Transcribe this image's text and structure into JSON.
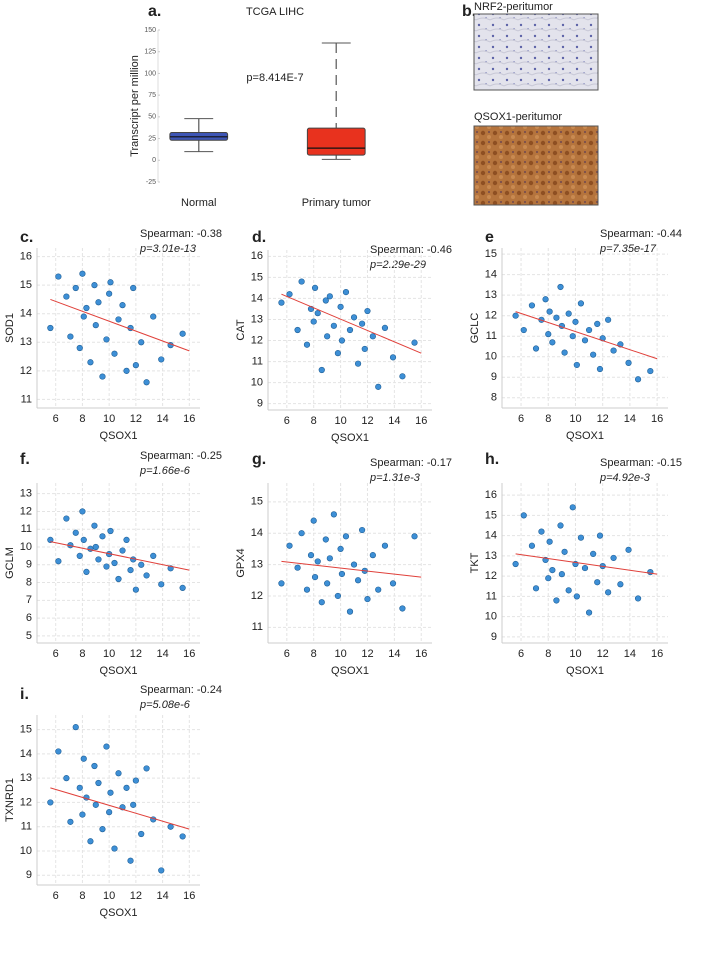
{
  "chart_data": [
    {
      "type": "box",
      "panel_label": "a.",
      "title": "TCGA LIHC",
      "ylabel": "Transcript per million",
      "annotation": "p=8.414E-7",
      "categories": [
        "Normal",
        "Primary tumor"
      ],
      "boxes": [
        {
          "low": 10,
          "q1": 23,
          "median": 27,
          "q3": 32,
          "high": 48,
          "color": "#3d55b5"
        },
        {
          "low": 1,
          "q1": 6,
          "median": 14,
          "q3": 37,
          "high": 135,
          "color": "#e8321e"
        }
      ],
      "ylim": [
        -25,
        150
      ],
      "yticks": [
        -25,
        0,
        25,
        50,
        75,
        100,
        125,
        150
      ]
    },
    {
      "type": "scatter",
      "panel_label": "c.",
      "xlabel": "QSOX1",
      "ylabel": "SOD1",
      "spearman": "Spearman: -0.38",
      "p_label": "p=3.01e-13",
      "x": [
        5.6,
        6.2,
        6.8,
        7.1,
        7.5,
        7.8,
        8.0,
        8.1,
        8.3,
        8.6,
        8.9,
        9.0,
        9.2,
        9.5,
        9.8,
        10.0,
        10.1,
        10.4,
        10.7,
        11.0,
        11.3,
        11.6,
        11.8,
        12.0,
        12.4,
        12.8,
        13.3,
        13.9,
        14.6,
        15.5
      ],
      "values": [
        13.5,
        15.3,
        14.6,
        13.2,
        14.9,
        12.8,
        15.4,
        13.9,
        14.2,
        12.3,
        15.0,
        13.6,
        14.4,
        11.8,
        13.1,
        14.7,
        15.1,
        12.6,
        13.8,
        14.3,
        12.0,
        13.5,
        14.9,
        12.2,
        13.0,
        11.6,
        13.9,
        12.4,
        12.9,
        13.3
      ],
      "fit": {
        "x": [
          5.6,
          16
        ],
        "y": [
          14.5,
          12.7
        ]
      },
      "color": "#3d8fd6",
      "line_color": "#e0403a",
      "xlim": [
        4.6,
        16.8
      ],
      "xticks": [
        6,
        8,
        10,
        12,
        14,
        16
      ],
      "ylim": [
        10.7,
        16.3
      ],
      "yticks": [
        11,
        12,
        13,
        14,
        15,
        16
      ],
      "grid": true
    },
    {
      "type": "scatter",
      "panel_label": "d.",
      "xlabel": "QSOX1",
      "ylabel": "CAT",
      "spearman": "Spearman: -0.46",
      "p_label": "p=2.29e-29",
      "x": [
        5.6,
        6.2,
        6.8,
        7.1,
        7.5,
        7.8,
        8.0,
        8.1,
        8.3,
        8.6,
        8.9,
        9.0,
        9.2,
        9.5,
        9.8,
        10.0,
        10.1,
        10.4,
        10.7,
        11.0,
        11.3,
        11.6,
        11.8,
        12.0,
        12.4,
        12.8,
        13.3,
        13.9,
        14.6,
        15.5
      ],
      "values": [
        13.8,
        14.2,
        12.5,
        14.8,
        11.8,
        13.5,
        12.9,
        14.5,
        13.3,
        10.6,
        13.9,
        12.2,
        14.1,
        12.7,
        11.4,
        13.6,
        12.0,
        14.3,
        12.5,
        13.1,
        10.9,
        12.8,
        11.6,
        13.4,
        12.2,
        9.8,
        12.6,
        11.2,
        10.3,
        11.9
      ],
      "fit": {
        "x": [
          5.6,
          16
        ],
        "y": [
          14.2,
          11.4
        ]
      },
      "color": "#3d8fd6",
      "line_color": "#e0403a",
      "xlim": [
        4.6,
        16.8
      ],
      "xticks": [
        6,
        8,
        10,
        12,
        14,
        16
      ],
      "ylim": [
        8.7,
        16.3
      ],
      "yticks": [
        9,
        10,
        11,
        12,
        13,
        14,
        15,
        16
      ],
      "grid": true
    },
    {
      "type": "scatter",
      "panel_label": "e",
      "xlabel": "QSOX1",
      "ylabel": "GCLC",
      "spearman": "Spearman: -0.44",
      "p_label": "p=7.35e-17",
      "x": [
        5.6,
        6.2,
        6.8,
        7.1,
        7.5,
        7.8,
        8.0,
        8.1,
        8.3,
        8.6,
        8.9,
        9.0,
        9.2,
        9.5,
        9.8,
        10.0,
        10.1,
        10.4,
        10.7,
        11.0,
        11.3,
        11.6,
        11.8,
        12.0,
        12.4,
        12.8,
        13.3,
        13.9,
        14.6,
        15.5
      ],
      "values": [
        12.0,
        11.3,
        12.5,
        10.4,
        11.8,
        12.8,
        11.1,
        12.2,
        10.7,
        11.9,
        13.4,
        11.5,
        10.2,
        12.1,
        11.0,
        11.7,
        9.6,
        12.6,
        10.8,
        11.3,
        10.1,
        11.6,
        9.4,
        10.9,
        11.8,
        10.3,
        10.6,
        9.7,
        8.9,
        9.3
      ],
      "fit": {
        "x": [
          5.6,
          16
        ],
        "y": [
          12.2,
          9.9
        ]
      },
      "color": "#3d8fd6",
      "line_color": "#e0403a",
      "xlim": [
        4.6,
        16.8
      ],
      "xticks": [
        6,
        8,
        10,
        12,
        14,
        16
      ],
      "ylim": [
        7.5,
        15.3
      ],
      "yticks": [
        8,
        9,
        10,
        11,
        12,
        13,
        14,
        15
      ],
      "grid": true
    },
    {
      "type": "scatter",
      "panel_label": "f.",
      "xlabel": "QSOX1",
      "ylabel": "GCLM",
      "spearman": "Spearman: -0.25",
      "p_label": "p=1.66e-6",
      "x": [
        5.6,
        6.2,
        6.8,
        7.1,
        7.5,
        7.8,
        8.0,
        8.1,
        8.3,
        8.6,
        8.9,
        9.0,
        9.2,
        9.5,
        9.8,
        10.0,
        10.1,
        10.4,
        10.7,
        11.0,
        11.3,
        11.6,
        11.8,
        12.0,
        12.4,
        12.8,
        13.3,
        13.9,
        14.6,
        15.5
      ],
      "values": [
        10.4,
        9.2,
        11.6,
        10.1,
        10.8,
        9.5,
        12.0,
        10.4,
        8.6,
        9.9,
        11.2,
        10.0,
        9.3,
        10.6,
        8.9,
        9.6,
        10.9,
        9.1,
        8.2,
        9.8,
        10.4,
        8.7,
        9.3,
        7.6,
        9.0,
        8.4,
        9.5,
        7.9,
        8.8,
        7.7
      ],
      "fit": {
        "x": [
          5.6,
          16
        ],
        "y": [
          10.3,
          8.7
        ]
      },
      "color": "#3d8fd6",
      "line_color": "#e0403a",
      "xlim": [
        4.6,
        16.8
      ],
      "xticks": [
        6,
        8,
        10,
        12,
        14,
        16
      ],
      "ylim": [
        4.6,
        13.6
      ],
      "yticks": [
        5,
        6,
        7,
        8,
        9,
        10,
        11,
        12,
        13
      ],
      "grid": true
    },
    {
      "type": "scatter",
      "panel_label": "g.",
      "xlabel": "QSOX1",
      "ylabel": "GPX4",
      "spearman": "Spearman: -0.17",
      "p_label": "p=1.31e-3",
      "x": [
        5.6,
        6.2,
        6.8,
        7.1,
        7.5,
        7.8,
        8.0,
        8.1,
        8.3,
        8.6,
        8.9,
        9.0,
        9.2,
        9.5,
        9.8,
        10.0,
        10.1,
        10.4,
        10.7,
        11.0,
        11.3,
        11.6,
        11.8,
        12.0,
        12.4,
        12.8,
        13.3,
        13.9,
        14.6,
        15.5
      ],
      "values": [
        12.4,
        13.6,
        12.9,
        14.0,
        12.2,
        13.3,
        14.4,
        12.6,
        13.1,
        11.8,
        13.8,
        12.4,
        13.2,
        14.6,
        12.0,
        13.5,
        12.7,
        13.9,
        11.5,
        13.0,
        12.5,
        14.1,
        12.8,
        11.9,
        13.3,
        12.2,
        13.6,
        12.4,
        11.6,
        13.9
      ],
      "fit": {
        "x": [
          5.6,
          16
        ],
        "y": [
          13.1,
          12.6
        ]
      },
      "color": "#3d8fd6",
      "line_color": "#e0403a",
      "xlim": [
        4.6,
        16.8
      ],
      "xticks": [
        6,
        8,
        10,
        12,
        14,
        16
      ],
      "ylim": [
        10.5,
        15.6
      ],
      "yticks": [
        11,
        12,
        13,
        14,
        15
      ],
      "grid": true
    },
    {
      "type": "scatter",
      "panel_label": "h.",
      "xlabel": "QSOX1",
      "ylabel": "TKT",
      "spearman": "Spearman: -0.15",
      "p_label": "p=4.92e-3",
      "x": [
        5.6,
        6.2,
        6.8,
        7.1,
        7.5,
        7.8,
        8.0,
        8.1,
        8.3,
        8.6,
        8.9,
        9.0,
        9.2,
        9.5,
        9.8,
        10.0,
        10.1,
        10.4,
        10.7,
        11.0,
        11.3,
        11.6,
        11.8,
        12.0,
        12.4,
        12.8,
        13.3,
        13.9,
        14.6,
        15.5
      ],
      "values": [
        12.6,
        15.0,
        13.5,
        11.4,
        14.2,
        12.8,
        11.9,
        13.7,
        12.3,
        10.8,
        14.5,
        12.1,
        13.2,
        11.3,
        15.4,
        12.6,
        11.0,
        13.9,
        12.4,
        10.2,
        13.1,
        11.7,
        14.0,
        12.5,
        11.2,
        12.9,
        11.6,
        13.3,
        10.9,
        12.2
      ],
      "fit": {
        "x": [
          5.6,
          16
        ],
        "y": [
          13.1,
          12.1
        ]
      },
      "color": "#3d8fd6",
      "line_color": "#e0403a",
      "xlim": [
        4.6,
        16.8
      ],
      "xticks": [
        6,
        8,
        10,
        12,
        14,
        16
      ],
      "ylim": [
        8.7,
        16.6
      ],
      "yticks": [
        9,
        10,
        11,
        12,
        13,
        14,
        15,
        16
      ],
      "grid": true
    },
    {
      "type": "scatter",
      "panel_label": "i.",
      "xlabel": "QSOX1",
      "ylabel": "TXNRD1",
      "spearman": "Spearman: -0.24",
      "p_label": "p=5.08e-6",
      "x": [
        5.6,
        6.2,
        6.8,
        7.1,
        7.5,
        7.8,
        8.0,
        8.1,
        8.3,
        8.6,
        8.9,
        9.0,
        9.2,
        9.5,
        9.8,
        10.0,
        10.1,
        10.4,
        10.7,
        11.0,
        11.3,
        11.6,
        11.8,
        12.0,
        12.4,
        12.8,
        13.3,
        13.9,
        14.6,
        15.5
      ],
      "values": [
        12.0,
        14.1,
        13.0,
        11.2,
        15.1,
        12.6,
        11.5,
        13.8,
        12.2,
        10.4,
        13.5,
        11.9,
        12.8,
        10.9,
        14.3,
        11.6,
        12.4,
        10.1,
        13.2,
        11.8,
        12.6,
        9.6,
        11.9,
        12.9,
        10.7,
        13.4,
        11.3,
        9.2,
        11.0,
        10.6
      ],
      "fit": {
        "x": [
          5.6,
          16
        ],
        "y": [
          12.6,
          10.9
        ]
      },
      "color": "#3d8fd6",
      "line_color": "#e0403a",
      "xlim": [
        4.6,
        16.8
      ],
      "xticks": [
        6,
        8,
        10,
        12,
        14,
        16
      ],
      "ylim": [
        8.6,
        15.6
      ],
      "yticks": [
        9,
        10,
        11,
        12,
        13,
        14,
        15
      ],
      "grid": true
    }
  ],
  "figure_b": {
    "panel_label": "b.",
    "images": [
      {
        "label": "NRF2-peritumor"
      },
      {
        "label": "QSOX1-peritumor"
      }
    ]
  }
}
